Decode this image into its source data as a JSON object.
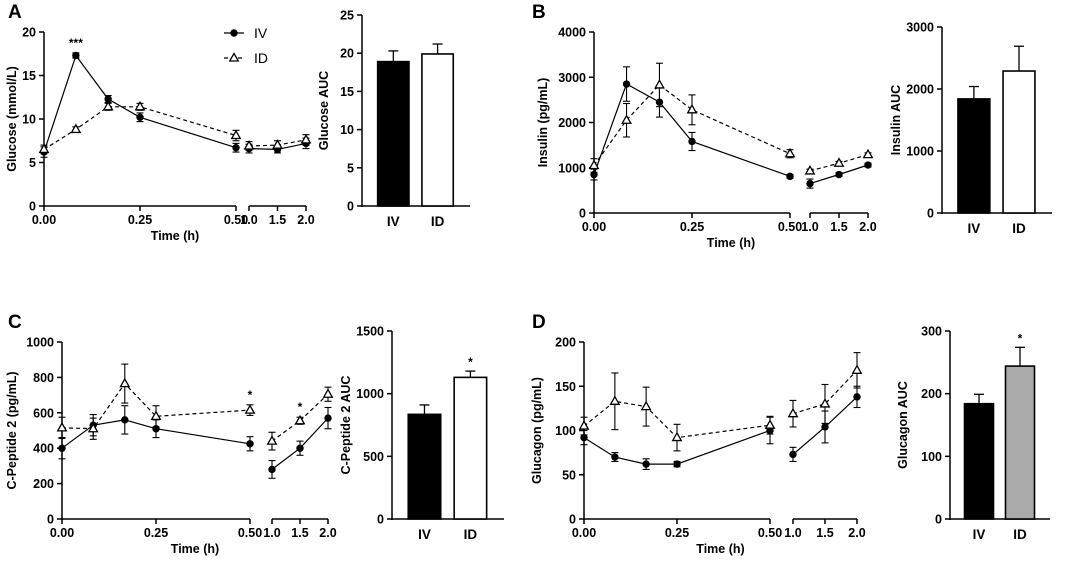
{
  "chart_data": [
    {
      "id": "A",
      "type": "line",
      "panel_label": "A",
      "ylabel": "Glucose (mmol/L)",
      "xlabel": "Time (h)",
      "ylim": [
        0,
        20
      ],
      "yticks": [
        "0",
        "5",
        "10",
        "15",
        "20"
      ],
      "xticks_left": [
        "0.00",
        "0.25",
        "0.50"
      ],
      "xticks_right": [
        "1.0",
        "1.5",
        "2.0"
      ],
      "legend": [
        "IV",
        "ID"
      ],
      "annotations": [
        {
          "text": "***",
          "x": 0.083
        }
      ],
      "series": [
        {
          "name": "IV",
          "marker": "circle",
          "x": [
            0,
            0.083,
            0.167,
            0.25,
            0.5
          ],
          "y": [
            6.2,
            17.3,
            12.3,
            10.2,
            6.7
          ],
          "err": [
            0.6,
            0.3,
            0.4,
            0.5,
            0.5
          ],
          "x2": [
            1.0,
            1.5,
            2.0
          ],
          "y2": [
            6.6,
            6.5,
            7.2
          ],
          "err2": [
            0.5,
            0.4,
            0.6
          ]
        },
        {
          "name": "ID",
          "marker": "triangle",
          "x": [
            0,
            0.083,
            0.167,
            0.25,
            0.5
          ],
          "y": [
            6.5,
            8.8,
            11.4,
            11.4,
            8.1
          ],
          "err": [
            0.5,
            0.3,
            0.4,
            0.4,
            0.6
          ],
          "x2": [
            1.0,
            1.5,
            2.0
          ],
          "y2": [
            6.9,
            7.0,
            7.6
          ],
          "err2": [
            0.5,
            0.5,
            0.6
          ]
        }
      ],
      "bar": {
        "ylabel": "Glucose AUC",
        "ylim": [
          0,
          25
        ],
        "yticks": [
          "0",
          "5",
          "10",
          "15",
          "20",
          "25"
        ],
        "categories": [
          "IV",
          "ID"
        ],
        "values": [
          18.9,
          19.9
        ],
        "err": [
          1.4,
          1.3
        ],
        "colors": [
          "#000000",
          "#ffffff"
        ],
        "annotations": [
          "",
          ""
        ]
      }
    },
    {
      "id": "B",
      "type": "line",
      "panel_label": "B",
      "ylabel": "Insulin (pg/mL)",
      "xlabel": "Time (h)",
      "ylim": [
        0,
        4000
      ],
      "yticks": [
        "0",
        "1000",
        "2000",
        "3000",
        "4000"
      ],
      "xticks_left": [
        "0.00",
        "0.25",
        "0.50"
      ],
      "xticks_right": [
        "1.0",
        "1.5",
        "2.0"
      ],
      "legend": [],
      "annotations": [],
      "series": [
        {
          "name": "IV",
          "marker": "circle",
          "x": [
            0,
            0.083,
            0.167,
            0.25,
            0.5
          ],
          "y": [
            850,
            2850,
            2450,
            1580,
            810
          ],
          "err": [
            120,
            380,
            330,
            200,
            40
          ],
          "x2": [
            1.0,
            1.5,
            2.0
          ],
          "y2": [
            650,
            850,
            1060
          ],
          "err2": [
            100,
            40,
            40
          ]
        },
        {
          "name": "ID",
          "marker": "triangle",
          "x": [
            0,
            0.083,
            0.167,
            0.25,
            0.5
          ],
          "y": [
            1050,
            2050,
            2830,
            2280,
            1310
          ],
          "err": [
            150,
            370,
            480,
            330,
            90
          ],
          "x2": [
            1.0,
            1.5,
            2.0
          ],
          "y2": [
            930,
            1100,
            1290
          ],
          "err2": [
            40,
            40,
            40
          ]
        }
      ],
      "bar": {
        "ylabel": "Insulin AUC",
        "ylim": [
          0,
          3000
        ],
        "yticks": [
          "0",
          "1000",
          "2000",
          "3000"
        ],
        "categories": [
          "IV",
          "ID"
        ],
        "values": [
          1840,
          2290
        ],
        "err": [
          200,
          400
        ],
        "colors": [
          "#000000",
          "#ffffff"
        ],
        "annotations": [
          "",
          ""
        ]
      }
    },
    {
      "id": "C",
      "type": "line",
      "panel_label": "C",
      "ylabel": "C-Peptide 2 (pg/mL)",
      "xlabel": "Time (h)",
      "ylim": [
        0,
        1000
      ],
      "yticks": [
        "0",
        "200",
        "400",
        "600",
        "800",
        "1000"
      ],
      "xticks_left": [
        "0.00",
        "0.25",
        "0.50"
      ],
      "xticks_right": [
        "1.0",
        "1.5",
        "2.0"
      ],
      "legend": [],
      "annotations": [
        {
          "text": "*",
          "x": 0.5
        },
        {
          "text": "*",
          "x": 1.5
        }
      ],
      "series": [
        {
          "name": "IV",
          "marker": "circle",
          "x": [
            0,
            0.083,
            0.167,
            0.25,
            0.5
          ],
          "y": [
            400,
            530,
            560,
            510,
            425
          ],
          "err": [
            60,
            60,
            80,
            50,
            40
          ],
          "x2": [
            1.0,
            1.5,
            2.0
          ],
          "y2": [
            280,
            400,
            570
          ],
          "err2": [
            50,
            40,
            60
          ]
        },
        {
          "name": "ID",
          "marker": "triangle",
          "x": [
            0,
            0.083,
            0.167,
            0.25,
            0.5
          ],
          "y": [
            515,
            510,
            765,
            580,
            615
          ],
          "err": [
            60,
            60,
            110,
            60,
            30
          ],
          "x2": [
            1.0,
            1.5,
            2.0
          ],
          "y2": [
            440,
            555,
            705
          ],
          "err2": [
            50,
            20,
            40
          ]
        }
      ],
      "bar": {
        "ylabel": "C-Peptide 2 AUC",
        "ylim": [
          0,
          1500
        ],
        "yticks": [
          "0",
          "500",
          "1000",
          "1500"
        ],
        "categories": [
          "IV",
          "ID"
        ],
        "values": [
          835,
          1130
        ],
        "err": [
          75,
          50
        ],
        "colors": [
          "#000000",
          "#ffffff"
        ],
        "annotations": [
          "",
          "*"
        ]
      }
    },
    {
      "id": "D",
      "type": "line",
      "panel_label": "D",
      "ylabel": "Glucagon (pg/mL)",
      "xlabel": "Time (h)",
      "ylim": [
        0,
        200
      ],
      "yticks": [
        "0",
        "50",
        "100",
        "150",
        "200"
      ],
      "xticks_left": [
        "0.00",
        "0.25",
        "0.50"
      ],
      "xticks_right": [
        "1.0",
        "1.5",
        "2.0"
      ],
      "legend": [],
      "annotations": [],
      "series": [
        {
          "name": "IV",
          "marker": "circle",
          "x": [
            0,
            0.083,
            0.167,
            0.25,
            0.5
          ],
          "y": [
            92,
            70,
            62,
            62,
            100
          ],
          "err": [
            8,
            5,
            6,
            3,
            15
          ],
          "x2": [
            1.0,
            1.5,
            2.0
          ],
          "y2": [
            73,
            104,
            138
          ],
          "err2": [
            8,
            18,
            12
          ]
        },
        {
          "name": "ID",
          "marker": "triangle",
          "x": [
            0,
            0.083,
            0.167,
            0.25,
            0.5
          ],
          "y": [
            105,
            133,
            127,
            92,
            106
          ],
          "err": [
            10,
            32,
            22,
            15,
            10
          ],
          "x2": [
            1.0,
            1.5,
            2.0
          ],
          "y2": [
            119,
            130,
            168
          ],
          "err2": [
            15,
            22,
            20
          ]
        }
      ],
      "bar": {
        "ylabel": "Glucagon AUC",
        "ylim": [
          0,
          300
        ],
        "yticks": [
          "0",
          "100",
          "200",
          "300"
        ],
        "categories": [
          "IV",
          "ID"
        ],
        "values": [
          184,
          244
        ],
        "err": [
          15,
          30
        ],
        "colors": [
          "#000000",
          "#aaaaaa"
        ],
        "annotations": [
          "",
          "*"
        ]
      }
    }
  ]
}
